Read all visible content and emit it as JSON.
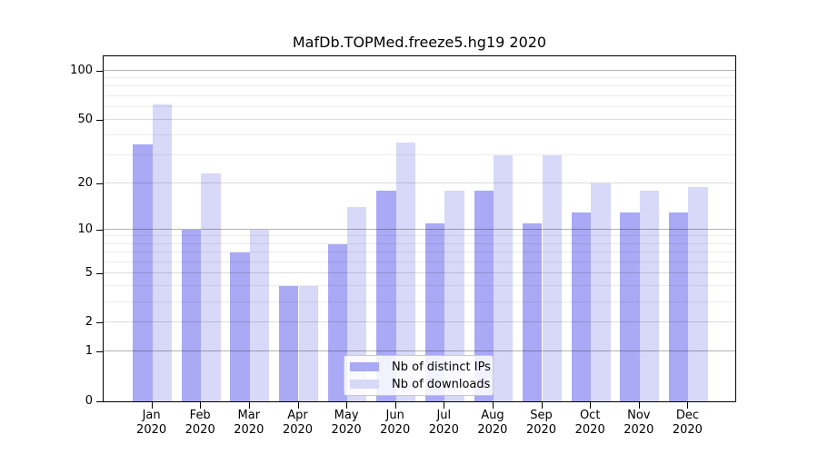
{
  "title": "MafDb.TOPMed.freeze5.hg19 2020",
  "chart_data": {
    "type": "bar",
    "title": "MafDb.TOPMed.freeze5.hg19 2020",
    "scale": "log1p",
    "grid": true,
    "legend_position": "lower center",
    "categories": [
      "Jan",
      "Feb",
      "Mar",
      "Apr",
      "May",
      "Jun",
      "Jul",
      "Aug",
      "Sep",
      "Oct",
      "Nov",
      "Dec"
    ],
    "x_year_label": "2020",
    "series": [
      {
        "name": "Nb of distinct IPs",
        "color": "#a9a9f5",
        "values": [
          35,
          10,
          7,
          4,
          8,
          18,
          11,
          18,
          11,
          13,
          13,
          13
        ]
      },
      {
        "name": "Nb of downloads",
        "color": "#d8d8f8",
        "values": [
          62,
          23,
          10,
          4,
          14,
          36,
          18,
          30,
          30,
          20,
          18,
          19
        ]
      }
    ],
    "ylim": [
      0,
      126
    ],
    "y_ticks": [
      100,
      50,
      20,
      10,
      5,
      2,
      1,
      0
    ],
    "y_minor_gridlines": [
      3,
      4,
      6,
      7,
      8,
      9,
      30,
      40,
      60,
      70,
      80,
      90
    ],
    "y_major_gridlines": [
      1,
      2,
      5,
      10,
      20,
      50,
      100
    ]
  },
  "legend": {
    "entries": [
      {
        "label": "Nb of distinct IPs"
      },
      {
        "label": "Nb of downloads"
      }
    ]
  },
  "colors": {
    "bar_distinct_ips": "#a9a9f5",
    "bar_downloads": "#d8d8f8",
    "grid_power10": "#b3b3b3",
    "grid_major": "#dcdcdc",
    "grid_minor": "#ececec",
    "spine": "#000000",
    "legend_border": "#c8c8c8"
  }
}
